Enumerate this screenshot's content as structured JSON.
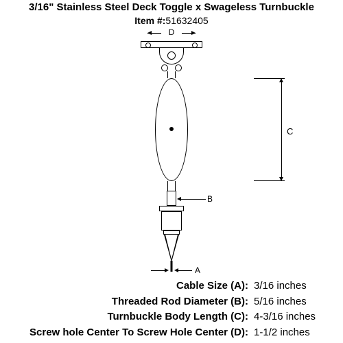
{
  "title": "3/16\" Stainless Steel Deck Toggle x Swageless Turnbuckle",
  "item_label": "Item #:",
  "item_number": "51632405",
  "dims": {
    "a": "A",
    "b": "B",
    "c": "C",
    "d": "D"
  },
  "specs": [
    {
      "label": "Cable Size (A):",
      "value": "3/16 inches"
    },
    {
      "label": "Threaded Rod Diameter (B):",
      "value": "5/16 inches"
    },
    {
      "label": "Turnbuckle Body Length (C):",
      "value": "4-3/16 inches"
    },
    {
      "label": "Screw hole Center To Screw Hole Center (D):",
      "value": "1-1/2 inches"
    }
  ],
  "colors": {
    "stroke": "#000000",
    "bg": "#ffffff"
  }
}
